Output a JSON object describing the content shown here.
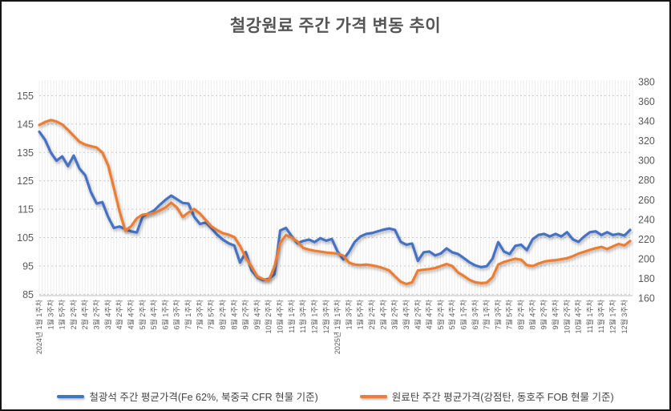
{
  "chart_data": {
    "type": "line",
    "title": "철강원료 주간 가격 변동 추이",
    "xlabel": "",
    "ylabel_left": "",
    "ylabel_right": "",
    "grid": "on",
    "legend_position": "bottom",
    "left_axis": {
      "min": 85,
      "max": 155,
      "step": 10,
      "ticks": [
        155,
        145,
        135,
        125,
        115,
        105,
        95,
        85
      ]
    },
    "right_axis": {
      "min": 160,
      "max": 380,
      "step": 20,
      "ticks": [
        380,
        360,
        340,
        320,
        300,
        280,
        260,
        240,
        220,
        200,
        180,
        160
      ]
    },
    "x_labels": [
      "2024년 1월 1주차",
      "1월 3주차",
      "1월 5주차",
      "2월 2주차",
      "2월 4주차",
      "3월 2주차",
      "3월 4주차",
      "4월 2주차",
      "4월 4주차",
      "5월 2주차",
      "5월 4주차",
      "6월 1주차",
      "6월 3주차",
      "7월 1주차",
      "7월 3주차",
      "7월 5주차",
      "8월 2주차",
      "8월 4주차",
      "9월 2주차",
      "9월 4주차",
      "10월 2주차",
      "10월 4주차",
      "11월 1주차",
      "11월 3주차",
      "12월 1주차",
      "12월 3주차",
      "2025년 1월 1주차",
      "1월 3주차",
      "1월 5주차",
      "2월 2주차",
      "2월 4주차",
      "3월 2주차",
      "3월 4주차",
      "4월 2주차",
      "4월 4주차",
      "5월 2주차",
      "5월 4주차",
      "6월 1주차",
      "6월 3주차",
      "7월 1주차",
      "7월 3주차",
      "7월 5주차",
      "8월 2주차",
      "8월 4주차",
      "9월 2주차",
      "9월 4주차",
      "10월 2주차",
      "10월 4주차",
      "11월 1주차",
      "11월 3주차",
      "12월 1주차",
      "12월 3주차"
    ],
    "series": [
      {
        "name": "철광석 주간 평균가격(Fe 62%, 북중국 CFR 현물 기준)",
        "axis": "left",
        "color": "#4472C4",
        "values": [
          142.3,
          139.5,
          135.0,
          132.1,
          133.6,
          130.2,
          133.9,
          129.3,
          127.0,
          121.0,
          117.0,
          117.5,
          112.3,
          108.4,
          108.9,
          108.0,
          107.2,
          106.8,
          112.3,
          113.5,
          114.5,
          116.5,
          118.3,
          119.8,
          118.5,
          117.2,
          117.0,
          112.3,
          109.8,
          110.3,
          108.3,
          106.0,
          104.3,
          103.0,
          102.2,
          96.2,
          99.9,
          93.4,
          91.0,
          90.0,
          90.5,
          92.0,
          107.5,
          108.4,
          105.5,
          103.0,
          103.8,
          104.3,
          103.4,
          104.8,
          103.9,
          104.5,
          100.1,
          97.3,
          100.0,
          103.5,
          105.4,
          106.3,
          106.6,
          107.2,
          107.8,
          108.2,
          107.7,
          103.5,
          102.5,
          102.9,
          96.8,
          99.8,
          100.1,
          98.7,
          99.4,
          101.2,
          99.8,
          99.2,
          97.8,
          96.3,
          95.2,
          94.6,
          94.9,
          97.5,
          103.4,
          100.1,
          99.2,
          102.1,
          102.5,
          100.6,
          104.4,
          105.9,
          106.3,
          105.4,
          106.3,
          105.4,
          106.9,
          104.4,
          103.5,
          105.4,
          106.9,
          107.2,
          105.9,
          106.9,
          105.9,
          106.3,
          105.7,
          107.7
        ]
      },
      {
        "name": "원료탄 주간 평균가격(강점탄, 동호주 FOB 현물 기준)",
        "axis": "right",
        "color": "#ED7D31",
        "values": [
          336,
          339,
          341,
          339.5,
          336.5,
          331,
          325,
          319,
          316,
          314.5,
          313,
          308,
          295,
          272,
          248,
          228.5,
          233,
          241,
          244.8,
          245.5,
          246.5,
          249,
          252,
          257,
          252,
          242.5,
          247,
          250.5,
          246,
          239.4,
          233,
          229,
          226,
          224.4,
          222,
          213,
          201,
          192,
          182.1,
          179.3,
          177.9,
          192,
          216,
          224,
          221.5,
          217.5,
          211,
          209.3,
          208,
          207.2,
          206.3,
          205.8,
          205.2,
          203,
          196,
          194,
          193.5,
          194,
          193.2,
          192,
          190.3,
          188,
          182.1,
          176.6,
          174.2,
          176,
          188,
          188.8,
          189.5,
          190.5,
          192.5,
          194.6,
          192.5,
          186,
          182.5,
          178.5,
          176,
          175.2,
          175.6,
          181,
          194,
          196.6,
          198.4,
          200,
          199,
          193.5,
          192.5,
          195,
          197,
          198,
          198.5,
          199.5,
          200.5,
          202.5,
          205.2,
          207,
          209,
          210.7,
          212,
          209.8,
          212.5,
          215,
          213.5,
          218
        ]
      }
    ],
    "style": {
      "stripe_color": "#ECECEC",
      "hgrid_color": "#C9C9C9",
      "axis_line_color": "#BFBFBF",
      "tick_label_color": "#595959",
      "title_color": "#555555"
    }
  }
}
